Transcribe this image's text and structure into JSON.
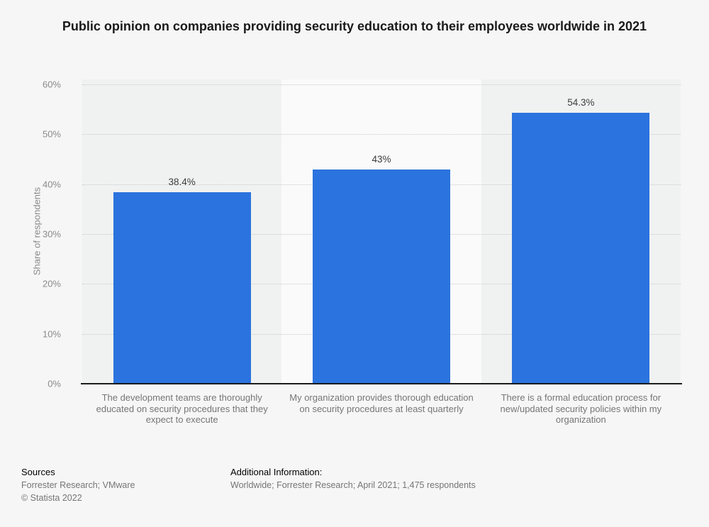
{
  "title": "Public opinion on companies providing security education to their employees worldwide in 2021",
  "chart_data": {
    "type": "bar",
    "categories": [
      "The development teams are thoroughly educated on security procedures that they expect to execute",
      "My organization provides thorough education on security procedures at least quarterly",
      "There is a formal education process for new/updated security policies within my organization"
    ],
    "values": [
      38.4,
      43,
      54.3
    ],
    "value_labels": [
      "38.4%",
      "43%",
      "54.3%"
    ],
    "title": "Public opinion on companies providing security education to their employees worldwide in 2021",
    "xlabel": "",
    "ylabel": "Share of respondents",
    "y_ticks": [
      0,
      10,
      20,
      30,
      40,
      50,
      60
    ],
    "y_tick_labels": [
      "0%",
      "10%",
      "20%",
      "30%",
      "40%",
      "50%",
      "60%"
    ],
    "ylim": [
      0,
      61
    ],
    "grid": "horizontal-dotted",
    "legend": "none"
  },
  "colors": {
    "page_background": "#f6f6f6",
    "band_odd": "#f0f1f1",
    "band_even": "#fafafa",
    "bar": "#2b73de",
    "gridline": "#c9c9c9",
    "axis_line": "#1c1c1c",
    "title_text": "#1a1a1a",
    "category_text": "#767676",
    "tick_text": "#8a8a8a",
    "value_text": "#3d3d3d"
  },
  "footer": {
    "sources_heading": "Sources",
    "sources_line": "Forrester Research; VMware",
    "copyright": "© Statista 2022",
    "additional_heading": "Additional Information:",
    "additional_line": "Worldwide; Forrester Research; April 2021; 1,475 respondents"
  }
}
